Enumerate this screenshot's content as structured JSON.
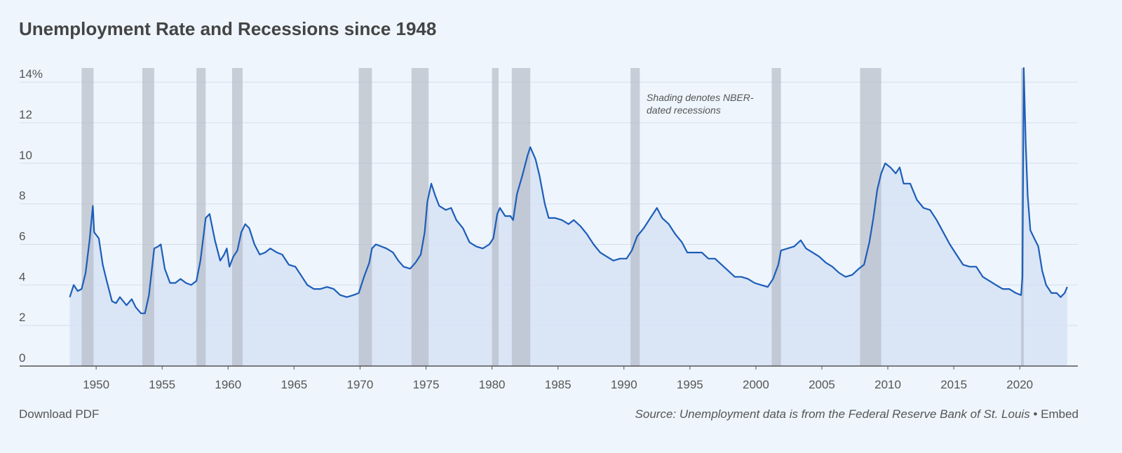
{
  "chart_data": {
    "type": "line",
    "title": "Unemployment Rate and Recessions since 1948",
    "annotation": [
      "Shading denotes NBER-",
      "dated recessions"
    ],
    "color": "#1c5eb8",
    "area_color": "#d6e2f5",
    "recession_color": "#b3b9c4",
    "x": [
      1948.0,
      1948.3,
      1948.6,
      1948.9,
      1949.2,
      1949.5,
      1949.75,
      1949.85,
      1950.2,
      1950.5,
      1950.8,
      1951.2,
      1951.5,
      1951.8,
      1952.3,
      1952.7,
      1953.0,
      1953.4,
      1953.7,
      1954.0,
      1954.4,
      1954.7,
      1954.9,
      1955.2,
      1955.6,
      1956.0,
      1956.4,
      1956.8,
      1957.2,
      1957.6,
      1957.9,
      1958.3,
      1958.6,
      1959.0,
      1959.4,
      1959.7,
      1959.9,
      1960.1,
      1960.4,
      1960.7,
      1961.0,
      1961.3,
      1961.6,
      1962.0,
      1962.4,
      1962.8,
      1963.2,
      1963.7,
      1964.1,
      1964.6,
      1965.1,
      1965.6,
      1966.0,
      1966.5,
      1967.0,
      1967.5,
      1968.0,
      1968.5,
      1969.0,
      1969.5,
      1969.9,
      1970.3,
      1970.7,
      1970.9,
      1971.2,
      1971.6,
      1972.0,
      1972.5,
      1972.9,
      1973.3,
      1973.8,
      1974.2,
      1974.6,
      1974.9,
      1975.1,
      1975.4,
      1975.7,
      1976.0,
      1976.5,
      1976.9,
      1977.3,
      1977.8,
      1978.3,
      1978.8,
      1979.3,
      1979.8,
      1980.1,
      1980.4,
      1980.6,
      1981.0,
      1981.4,
      1981.6,
      1981.9,
      1982.3,
      1982.7,
      1982.9,
      1983.3,
      1983.6,
      1984.0,
      1984.3,
      1984.8,
      1985.3,
      1985.8,
      1986.2,
      1986.7,
      1987.2,
      1987.7,
      1988.2,
      1988.7,
      1989.2,
      1989.7,
      1990.2,
      1990.6,
      1991.0,
      1991.5,
      1992.0,
      1992.5,
      1992.9,
      1993.4,
      1993.9,
      1994.4,
      1994.8,
      1995.3,
      1995.9,
      1996.4,
      1996.9,
      1997.4,
      1997.9,
      1998.4,
      1998.9,
      1999.4,
      1999.9,
      2000.4,
      2000.9,
      2001.3,
      2001.7,
      2001.9,
      2002.4,
      2002.9,
      2003.4,
      2003.8,
      2004.3,
      2004.8,
      2005.3,
      2005.8,
      2006.3,
      2006.8,
      2007.3,
      2007.8,
      2008.2,
      2008.6,
      2008.9,
      2009.2,
      2009.5,
      2009.8,
      2010.2,
      2010.6,
      2010.9,
      2011.2,
      2011.7,
      2012.2,
      2012.7,
      2013.2,
      2013.7,
      2014.2,
      2014.7,
      2015.2,
      2015.7,
      2016.2,
      2016.7,
      2017.2,
      2017.7,
      2018.2,
      2018.7,
      2019.2,
      2019.7,
      2020.1,
      2020.2,
      2020.3,
      2020.45,
      2020.6,
      2020.8,
      2021.1,
      2021.4,
      2021.7,
      2022.0,
      2022.4,
      2022.8,
      2023.1,
      2023.4,
      2023.6
    ],
    "values": [
      3.4,
      4.0,
      3.7,
      3.8,
      4.6,
      6.2,
      7.9,
      6.6,
      6.3,
      5.0,
      4.2,
      3.2,
      3.1,
      3.4,
      3.0,
      3.3,
      2.9,
      2.6,
      2.6,
      3.5,
      5.8,
      5.9,
      6.0,
      4.8,
      4.1,
      4.1,
      4.3,
      4.1,
      4.0,
      4.2,
      5.2,
      7.3,
      7.5,
      6.2,
      5.2,
      5.5,
      5.8,
      4.9,
      5.4,
      5.7,
      6.6,
      7.0,
      6.8,
      6.0,
      5.5,
      5.6,
      5.8,
      5.6,
      5.5,
      5.0,
      4.9,
      4.4,
      4.0,
      3.8,
      3.8,
      3.9,
      3.8,
      3.5,
      3.4,
      3.5,
      3.6,
      4.4,
      5.1,
      5.8,
      6.0,
      5.9,
      5.8,
      5.6,
      5.2,
      4.9,
      4.8,
      5.1,
      5.5,
      6.6,
      8.1,
      9.0,
      8.4,
      7.9,
      7.7,
      7.8,
      7.2,
      6.8,
      6.1,
      5.9,
      5.8,
      6.0,
      6.3,
      7.5,
      7.8,
      7.4,
      7.4,
      7.2,
      8.5,
      9.4,
      10.4,
      10.8,
      10.2,
      9.4,
      8.0,
      7.3,
      7.3,
      7.2,
      7.0,
      7.2,
      6.9,
      6.5,
      6.0,
      5.6,
      5.4,
      5.2,
      5.3,
      5.3,
      5.7,
      6.4,
      6.8,
      7.3,
      7.8,
      7.3,
      7.0,
      6.5,
      6.1,
      5.6,
      5.6,
      5.6,
      5.3,
      5.3,
      5.0,
      4.7,
      4.4,
      4.4,
      4.3,
      4.1,
      4.0,
      3.9,
      4.3,
      5.0,
      5.7,
      5.8,
      5.9,
      6.2,
      5.8,
      5.6,
      5.4,
      5.1,
      4.9,
      4.6,
      4.4,
      4.5,
      4.8,
      5.0,
      6.1,
      7.3,
      8.7,
      9.5,
      10.0,
      9.8,
      9.5,
      9.8,
      9.0,
      9.0,
      8.2,
      7.8,
      7.7,
      7.2,
      6.6,
      6.0,
      5.5,
      5.0,
      4.9,
      4.9,
      4.4,
      4.2,
      4.0,
      3.8,
      3.8,
      3.6,
      3.5,
      4.4,
      14.7,
      11.0,
      8.4,
      6.7,
      6.3,
      5.9,
      4.7,
      4.0,
      3.6,
      3.6,
      3.4,
      3.6,
      3.9
    ],
    "recessions": [
      {
        "start": 1948.9,
        "end": 1949.8
      },
      {
        "start": 1953.5,
        "end": 1954.4
      },
      {
        "start": 1957.6,
        "end": 1958.3
      },
      {
        "start": 1960.3,
        "end": 1961.1
      },
      {
        "start": 1969.9,
        "end": 1970.9
      },
      {
        "start": 1973.9,
        "end": 1975.2
      },
      {
        "start": 1980.0,
        "end": 1980.5
      },
      {
        "start": 1981.5,
        "end": 1982.9
      },
      {
        "start": 1990.5,
        "end": 1991.2
      },
      {
        "start": 2001.2,
        "end": 2001.9
      },
      {
        "start": 2007.9,
        "end": 2009.5
      },
      {
        "start": 2020.1,
        "end": 2020.3
      }
    ],
    "xlim": [
      1944.2,
      2024.4
    ],
    "ylim": [
      0,
      14.7
    ],
    "xticks": [
      1950,
      1955,
      1960,
      1965,
      1970,
      1975,
      1980,
      1985,
      1990,
      1995,
      2000,
      2005,
      2010,
      2015,
      2020
    ],
    "yticks": [
      0,
      2,
      4,
      6,
      8,
      10,
      12,
      {
        "value": 14,
        "label": "14%"
      }
    ],
    "grid": true,
    "footer": {
      "download": "Download PDF",
      "source": "Source: Unemployment data is from the Federal Reserve Bank of St. Louis",
      "separator": "•",
      "embed": "Embed"
    }
  }
}
